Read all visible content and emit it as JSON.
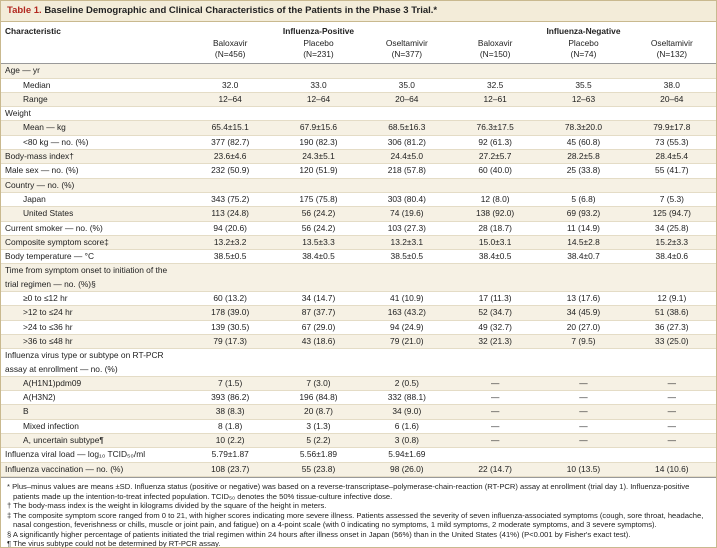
{
  "title": {
    "label": "Table 1.",
    "text": "Baseline Demographic and Clinical Characteristics of the Patients in the Phase 3 Trial.*"
  },
  "header": {
    "characteristic": "Characteristic",
    "groups": [
      "Influenza-Positive",
      "Influenza-Negative"
    ],
    "columns": [
      {
        "name": "Baloxavir",
        "n": "(N=456)"
      },
      {
        "name": "Placebo",
        "n": "(N=231)"
      },
      {
        "name": "Oseltamivir",
        "n": "(N=377)"
      },
      {
        "name": "Baloxavir",
        "n": "(N=150)"
      },
      {
        "name": "Placebo",
        "n": "(N=74)"
      },
      {
        "name": "Oseltamivir",
        "n": "(N=132)"
      }
    ]
  },
  "rows": [
    {
      "label": "Age — yr",
      "indent": false,
      "values": null
    },
    {
      "label": "Median",
      "indent": true,
      "values": [
        "32.0",
        "33.0",
        "35.0",
        "32.5",
        "35.5",
        "38.0"
      ]
    },
    {
      "label": "Range",
      "indent": true,
      "values": [
        "12–64",
        "12–64",
        "20–64",
        "12–61",
        "12–63",
        "20–64"
      ]
    },
    {
      "label": "Weight",
      "indent": false,
      "values": null
    },
    {
      "label": "Mean — kg",
      "indent": true,
      "values": [
        "65.4±15.1",
        "67.9±15.6",
        "68.5±16.3",
        "76.3±17.5",
        "78.3±20.0",
        "79.9±17.8"
      ]
    },
    {
      "label": "<80 kg — no. (%)",
      "indent": true,
      "values": [
        "377 (82.7)",
        "190 (82.3)",
        "306 (81.2)",
        "92 (61.3)",
        "45 (60.8)",
        "73 (55.3)"
      ]
    },
    {
      "label": "Body-mass index†",
      "indent": false,
      "values": [
        "23.6±4.6",
        "24.3±5.1",
        "24.4±5.0",
        "27.2±5.7",
        "28.2±5.8",
        "28.4±5.4"
      ]
    },
    {
      "label": "Male sex — no. (%)",
      "indent": false,
      "values": [
        "232 (50.9)",
        "120 (51.9)",
        "218 (57.8)",
        "60 (40.0)",
        "25 (33.8)",
        "55 (41.7)"
      ]
    },
    {
      "label": "Country — no. (%)",
      "indent": false,
      "values": null
    },
    {
      "label": "Japan",
      "indent": true,
      "values": [
        "343 (75.2)",
        "175 (75.8)",
        "303 (80.4)",
        "12 (8.0)",
        "5 (6.8)",
        "7 (5.3)"
      ]
    },
    {
      "label": "United States",
      "indent": true,
      "values": [
        "113 (24.8)",
        "56 (24.2)",
        "74 (19.6)",
        "138 (92.0)",
        "69 (93.2)",
        "125 (94.7)"
      ]
    },
    {
      "label": "Current smoker — no. (%)",
      "indent": false,
      "values": [
        "94 (20.6)",
        "56 (24.2)",
        "103 (27.3)",
        "28 (18.7)",
        "11 (14.9)",
        "34 (25.8)"
      ]
    },
    {
      "label": "Composite symptom score‡",
      "indent": false,
      "values": [
        "13.2±3.2",
        "13.5±3.3",
        "13.2±3.1",
        "15.0±3.1",
        "14.5±2.8",
        "15.2±3.3"
      ]
    },
    {
      "label": "Body temperature — °C",
      "indent": false,
      "values": [
        "38.5±0.5",
        "38.4±0.5",
        "38.5±0.5",
        "38.4±0.5",
        "38.4±0.7",
        "38.4±0.6"
      ]
    },
    {
      "label": "Time from symptom onset to initiation of the trial regimen — no. (%)§",
      "indent": false,
      "values": null
    },
    {
      "label": "≥0 to ≤12 hr",
      "indent": true,
      "values": [
        "60 (13.2)",
        "34 (14.7)",
        "41 (10.9)",
        "17 (11.3)",
        "13 (17.6)",
        "12 (9.1)"
      ]
    },
    {
      "label": ">12 to ≤24 hr",
      "indent": true,
      "values": [
        "178 (39.0)",
        "87 (37.7)",
        "163 (43.2)",
        "52 (34.7)",
        "34 (45.9)",
        "51 (38.6)"
      ]
    },
    {
      "label": ">24 to ≤36 hr",
      "indent": true,
      "values": [
        "139 (30.5)",
        "67 (29.0)",
        "94 (24.9)",
        "49 (32.7)",
        "20 (27.0)",
        "36 (27.3)"
      ]
    },
    {
      "label": ">36 to ≤48 hr",
      "indent": true,
      "values": [
        "79 (17.3)",
        "43 (18.6)",
        "79 (21.0)",
        "32 (21.3)",
        "7 (9.5)",
        "33 (25.0)"
      ]
    },
    {
      "label": "Influenza virus type or subtype on RT-PCR assay at enrollment — no. (%)",
      "indent": false,
      "values": null
    },
    {
      "label": "A(H1N1)pdm09",
      "indent": true,
      "values": [
        "7 (1.5)",
        "7 (3.0)",
        "2 (0.5)",
        "—",
        "—",
        "—"
      ]
    },
    {
      "label": "A(H3N2)",
      "indent": true,
      "values": [
        "393 (86.2)",
        "196 (84.8)",
        "332 (88.1)",
        "—",
        "—",
        "—"
      ]
    },
    {
      "label": "B",
      "indent": true,
      "values": [
        "38 (8.3)",
        "20 (8.7)",
        "34 (9.0)",
        "—",
        "—",
        "—"
      ]
    },
    {
      "label": "Mixed infection",
      "indent": true,
      "values": [
        "8 (1.8)",
        "3 (1.3)",
        "6 (1.6)",
        "—",
        "—",
        "—"
      ]
    },
    {
      "label": "A, uncertain subtype¶",
      "indent": true,
      "values": [
        "10 (2.2)",
        "5 (2.2)",
        "3 (0.8)",
        "—",
        "—",
        "—"
      ]
    },
    {
      "label": "Influenza viral load — log₁₀ TCID₅₀/ml",
      "indent": false,
      "values": [
        "5.79±1.87",
        "5.56±1.89",
        "5.94±1.69",
        null,
        null,
        null
      ]
    },
    {
      "label": "Influenza vaccination — no. (%)",
      "indent": false,
      "values": [
        "108 (23.7)",
        "55 (23.8)",
        "98 (26.0)",
        "22 (14.7)",
        "10 (13.5)",
        "14 (10.6)"
      ]
    }
  ],
  "footnotes": [
    "* Plus–minus values are means ±SD. Influenza status (positive or negative) was based on a reverse-transcriptase–polymerase-chain-reaction (RT-PCR) assay at enrollment (trial day 1). Influenza-positive patients made up the intention-to-treat infected population. TCID₅₀ denotes the 50% tissue-culture infective dose.",
    "† The body-mass index is the weight in kilograms divided by the square of the height in meters.",
    "‡ The composite symptom score ranged from 0 to 21, with higher scores indicating more severe illness. Patients assessed the severity of seven influenza-associated symptoms (cough, sore throat, headache, nasal congestion, feverishness or chills, muscle or joint pain, and fatigue) on a 4-point scale (with 0 indicating no symptoms, 1 mild symptoms, 2 moderate symptoms, and 3 severe symptoms).",
    "§ A significantly higher percentage of patients initiated the trial regimen within 24 hours after illness onset in Japan (56%) than in the United States (41%) (P<0.001 by Fisher's exact test).",
    "¶ The virus subtype could not be determined by RT-PCR assay."
  ]
}
